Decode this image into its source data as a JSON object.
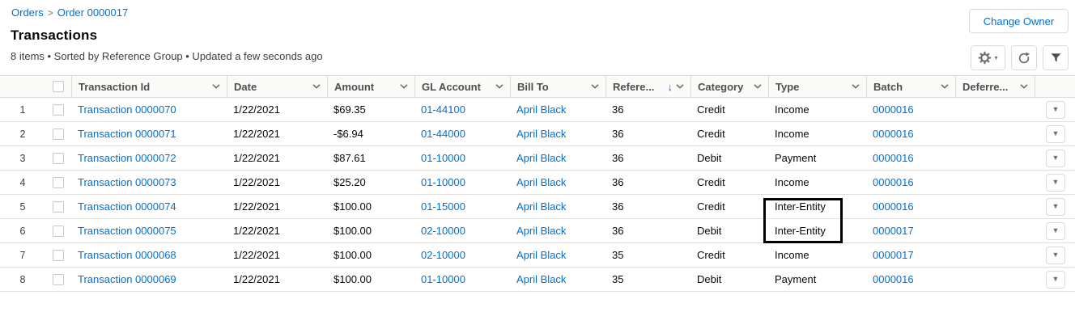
{
  "breadcrumb": {
    "orders": "Orders",
    "separator": ">",
    "order": "Order 0000017"
  },
  "title": "Transactions",
  "status": "8 items • Sorted by Reference Group • Updated a few seconds ago",
  "actions": {
    "change_owner": "Change Owner"
  },
  "icons": {
    "gear": "gear-icon",
    "refresh": "refresh-icon",
    "filter": "filter-funnel-icon",
    "chevron_down": "∨",
    "sort_desc": "↓",
    "row_menu": "▼",
    "caret_down": "▾"
  },
  "colors": {
    "link_blue": "#0070d2",
    "header_text": "#514f4d",
    "body_text": "#080707",
    "border": "#dddbda",
    "icon_gray": "#706e6b",
    "annotation": "#000000"
  },
  "table": {
    "columns": [
      {
        "key": "rownum",
        "label": "",
        "width": 56,
        "type": "rownum"
      },
      {
        "key": "checkbox",
        "label": "",
        "width": 32,
        "type": "checkbox"
      },
      {
        "key": "transaction_id",
        "label": "Transaction Id",
        "width": 192,
        "type": "link",
        "menu": true
      },
      {
        "key": "date",
        "label": "Date",
        "width": 124,
        "type": "text",
        "menu": true
      },
      {
        "key": "amount",
        "label": "Amount",
        "width": 108,
        "type": "text",
        "menu": true
      },
      {
        "key": "gl_account",
        "label": "GL Account",
        "width": 118,
        "type": "link",
        "menu": true
      },
      {
        "key": "bill_to",
        "label": "Bill To",
        "width": 118,
        "type": "link",
        "menu": true
      },
      {
        "key": "reference",
        "label": "Refere...",
        "width": 105,
        "type": "text",
        "menu": true,
        "sorted": "desc"
      },
      {
        "key": "category",
        "label": "Category",
        "width": 96,
        "type": "text",
        "menu": true
      },
      {
        "key": "type",
        "label": "Type",
        "width": 121,
        "type": "text",
        "menu": true
      },
      {
        "key": "batch",
        "label": "Batch",
        "width": 110,
        "type": "link",
        "menu": true
      },
      {
        "key": "deferred",
        "label": "Deferre...",
        "width": 98,
        "type": "text",
        "menu": true
      },
      {
        "key": "actions",
        "label": "",
        "width": 50,
        "type": "action"
      }
    ],
    "rows": [
      {
        "num": "1",
        "transaction_id": "Transaction 0000070",
        "date": "1/22/2021",
        "amount": "$69.35",
        "gl_account": "01-44100",
        "bill_to": "April Black",
        "reference": "36",
        "category": "Credit",
        "type": "Income",
        "batch": "0000016",
        "deferred": ""
      },
      {
        "num": "2",
        "transaction_id": "Transaction 0000071",
        "date": "1/22/2021",
        "amount": "-$6.94",
        "gl_account": "01-44000",
        "bill_to": "April Black",
        "reference": "36",
        "category": "Credit",
        "type": "Income",
        "batch": "0000016",
        "deferred": ""
      },
      {
        "num": "3",
        "transaction_id": "Transaction 0000072",
        "date": "1/22/2021",
        "amount": "$87.61",
        "gl_account": "01-10000",
        "bill_to": "April Black",
        "reference": "36",
        "category": "Debit",
        "type": "Payment",
        "batch": "0000016",
        "deferred": ""
      },
      {
        "num": "4",
        "transaction_id": "Transaction 0000073",
        "date": "1/22/2021",
        "amount": "$25.20",
        "gl_account": "01-10000",
        "bill_to": "April Black",
        "reference": "36",
        "category": "Credit",
        "type": "Income",
        "batch": "0000016",
        "deferred": ""
      },
      {
        "num": "5",
        "transaction_id": "Transaction 0000074",
        "date": "1/22/2021",
        "amount": "$100.00",
        "gl_account": "01-15000",
        "bill_to": "April Black",
        "reference": "36",
        "category": "Credit",
        "type": "Inter-Entity",
        "batch": "0000016",
        "deferred": ""
      },
      {
        "num": "6",
        "transaction_id": "Transaction 0000075",
        "date": "1/22/2021",
        "amount": "$100.00",
        "gl_account": "02-10000",
        "bill_to": "April Black",
        "reference": "36",
        "category": "Debit",
        "type": "Inter-Entity",
        "batch": "0000017",
        "deferred": ""
      },
      {
        "num": "7",
        "transaction_id": "Transaction 0000068",
        "date": "1/22/2021",
        "amount": "$100.00",
        "gl_account": "02-10000",
        "bill_to": "April Black",
        "reference": "35",
        "category": "Credit",
        "type": "Income",
        "batch": "0000017",
        "deferred": ""
      },
      {
        "num": "8",
        "transaction_id": "Transaction 0000069",
        "date": "1/22/2021",
        "amount": "$100.00",
        "gl_account": "01-10000",
        "bill_to": "April Black",
        "reference": "35",
        "category": "Debit",
        "type": "Payment",
        "batch": "0000016",
        "deferred": ""
      }
    ]
  },
  "annotation": {
    "shape": "rectangle",
    "color": "#000000",
    "column": "Type",
    "rows": [
      5,
      6
    ],
    "values_highlighted": [
      "Inter-Entity",
      "Inter-Entity"
    ]
  }
}
